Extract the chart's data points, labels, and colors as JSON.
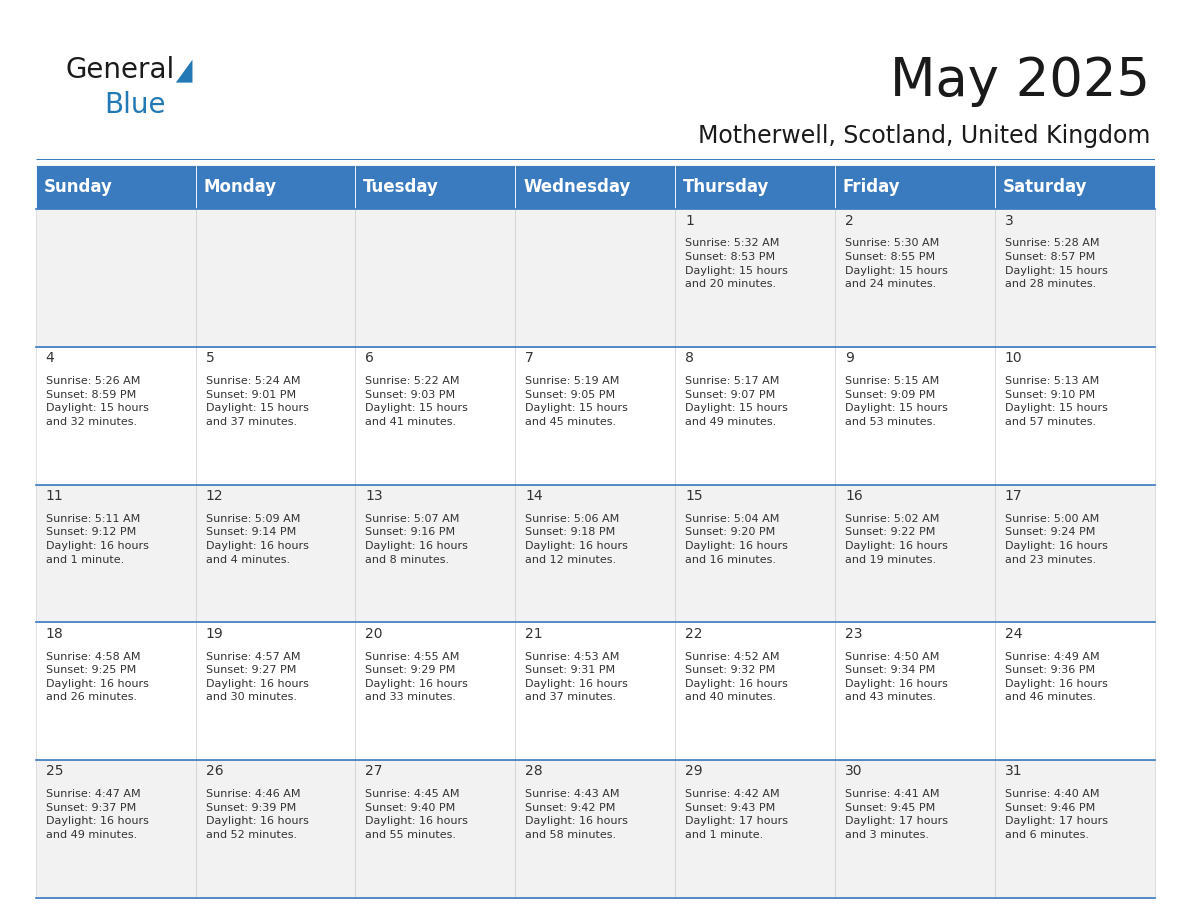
{
  "title": "May 2025",
  "subtitle": "Motherwell, Scotland, United Kingdom",
  "header_bg": "#3a7abf",
  "header_text": "#ffffff",
  "header_fontsize": 12,
  "day_names": [
    "Sunday",
    "Monday",
    "Tuesday",
    "Wednesday",
    "Thursday",
    "Friday",
    "Saturday"
  ],
  "title_fontsize": 38,
  "subtitle_fontsize": 17,
  "cell_text_fontsize": 8.0,
  "day_num_fontsize": 10,
  "row_odd_bg": "#f2f2f2",
  "row_even_bg": "#ffffff",
  "cell_border_color": "#3a7abf",
  "text_color": "#333333",
  "calendar": [
    [
      {
        "day": "",
        "info": ""
      },
      {
        "day": "",
        "info": ""
      },
      {
        "day": "",
        "info": ""
      },
      {
        "day": "",
        "info": ""
      },
      {
        "day": "1",
        "info": "Sunrise: 5:32 AM\nSunset: 8:53 PM\nDaylight: 15 hours\nand 20 minutes."
      },
      {
        "day": "2",
        "info": "Sunrise: 5:30 AM\nSunset: 8:55 PM\nDaylight: 15 hours\nand 24 minutes."
      },
      {
        "day": "3",
        "info": "Sunrise: 5:28 AM\nSunset: 8:57 PM\nDaylight: 15 hours\nand 28 minutes."
      }
    ],
    [
      {
        "day": "4",
        "info": "Sunrise: 5:26 AM\nSunset: 8:59 PM\nDaylight: 15 hours\nand 32 minutes."
      },
      {
        "day": "5",
        "info": "Sunrise: 5:24 AM\nSunset: 9:01 PM\nDaylight: 15 hours\nand 37 minutes."
      },
      {
        "day": "6",
        "info": "Sunrise: 5:22 AM\nSunset: 9:03 PM\nDaylight: 15 hours\nand 41 minutes."
      },
      {
        "day": "7",
        "info": "Sunrise: 5:19 AM\nSunset: 9:05 PM\nDaylight: 15 hours\nand 45 minutes."
      },
      {
        "day": "8",
        "info": "Sunrise: 5:17 AM\nSunset: 9:07 PM\nDaylight: 15 hours\nand 49 minutes."
      },
      {
        "day": "9",
        "info": "Sunrise: 5:15 AM\nSunset: 9:09 PM\nDaylight: 15 hours\nand 53 minutes."
      },
      {
        "day": "10",
        "info": "Sunrise: 5:13 AM\nSunset: 9:10 PM\nDaylight: 15 hours\nand 57 minutes."
      }
    ],
    [
      {
        "day": "11",
        "info": "Sunrise: 5:11 AM\nSunset: 9:12 PM\nDaylight: 16 hours\nand 1 minute."
      },
      {
        "day": "12",
        "info": "Sunrise: 5:09 AM\nSunset: 9:14 PM\nDaylight: 16 hours\nand 4 minutes."
      },
      {
        "day": "13",
        "info": "Sunrise: 5:07 AM\nSunset: 9:16 PM\nDaylight: 16 hours\nand 8 minutes."
      },
      {
        "day": "14",
        "info": "Sunrise: 5:06 AM\nSunset: 9:18 PM\nDaylight: 16 hours\nand 12 minutes."
      },
      {
        "day": "15",
        "info": "Sunrise: 5:04 AM\nSunset: 9:20 PM\nDaylight: 16 hours\nand 16 minutes."
      },
      {
        "day": "16",
        "info": "Sunrise: 5:02 AM\nSunset: 9:22 PM\nDaylight: 16 hours\nand 19 minutes."
      },
      {
        "day": "17",
        "info": "Sunrise: 5:00 AM\nSunset: 9:24 PM\nDaylight: 16 hours\nand 23 minutes."
      }
    ],
    [
      {
        "day": "18",
        "info": "Sunrise: 4:58 AM\nSunset: 9:25 PM\nDaylight: 16 hours\nand 26 minutes."
      },
      {
        "day": "19",
        "info": "Sunrise: 4:57 AM\nSunset: 9:27 PM\nDaylight: 16 hours\nand 30 minutes."
      },
      {
        "day": "20",
        "info": "Sunrise: 4:55 AM\nSunset: 9:29 PM\nDaylight: 16 hours\nand 33 minutes."
      },
      {
        "day": "21",
        "info": "Sunrise: 4:53 AM\nSunset: 9:31 PM\nDaylight: 16 hours\nand 37 minutes."
      },
      {
        "day": "22",
        "info": "Sunrise: 4:52 AM\nSunset: 9:32 PM\nDaylight: 16 hours\nand 40 minutes."
      },
      {
        "day": "23",
        "info": "Sunrise: 4:50 AM\nSunset: 9:34 PM\nDaylight: 16 hours\nand 43 minutes."
      },
      {
        "day": "24",
        "info": "Sunrise: 4:49 AM\nSunset: 9:36 PM\nDaylight: 16 hours\nand 46 minutes."
      }
    ],
    [
      {
        "day": "25",
        "info": "Sunrise: 4:47 AM\nSunset: 9:37 PM\nDaylight: 16 hours\nand 49 minutes."
      },
      {
        "day": "26",
        "info": "Sunrise: 4:46 AM\nSunset: 9:39 PM\nDaylight: 16 hours\nand 52 minutes."
      },
      {
        "day": "27",
        "info": "Sunrise: 4:45 AM\nSunset: 9:40 PM\nDaylight: 16 hours\nand 55 minutes."
      },
      {
        "day": "28",
        "info": "Sunrise: 4:43 AM\nSunset: 9:42 PM\nDaylight: 16 hours\nand 58 minutes."
      },
      {
        "day": "29",
        "info": "Sunrise: 4:42 AM\nSunset: 9:43 PM\nDaylight: 17 hours\nand 1 minute."
      },
      {
        "day": "30",
        "info": "Sunrise: 4:41 AM\nSunset: 9:45 PM\nDaylight: 17 hours\nand 3 minutes."
      },
      {
        "day": "31",
        "info": "Sunrise: 4:40 AM\nSunset: 9:46 PM\nDaylight: 17 hours\nand 6 minutes."
      }
    ]
  ],
  "logo_color_general": "#1a1a1a",
  "logo_color_blue": "#2279b5",
  "logo_fontsize_general": 20,
  "logo_fontsize_blue": 20
}
